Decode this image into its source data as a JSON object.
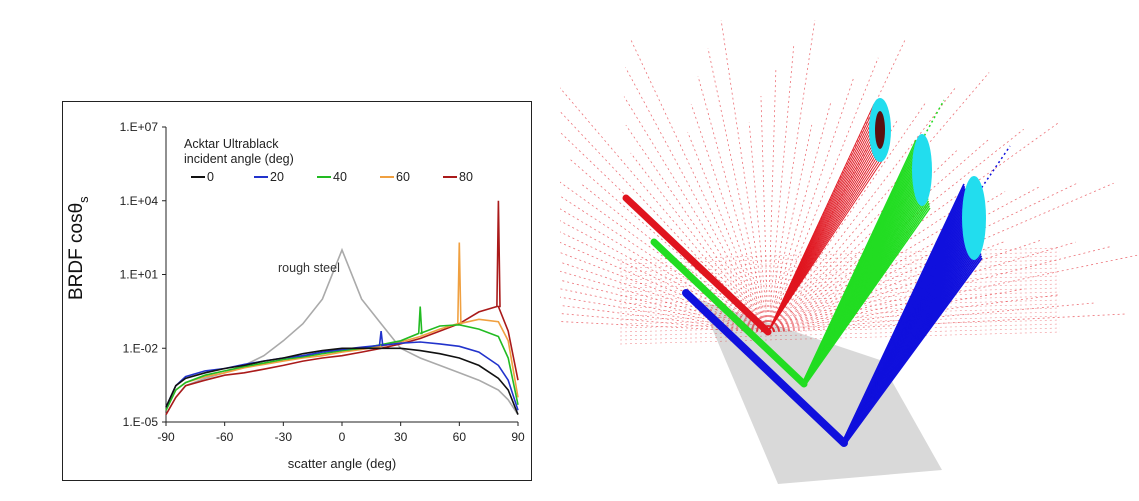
{
  "chart_data": {
    "type": "line",
    "title": "Acktar Ultrablack",
    "subtitle": "incident angle (deg)",
    "xlabel": "scatter angle (deg)",
    "ylabel_main": "BRDF cosθ",
    "ylabel_sub": "s",
    "yscale": "log",
    "xlim": [
      -90,
      90
    ],
    "ylim": [
      1e-05,
      10000000
    ],
    "x_ticks": [
      -90,
      -60,
      -30,
      0,
      30,
      60,
      90
    ],
    "y_ticks": [
      {
        "value": 1e-05,
        "label": "1.E-05"
      },
      {
        "value": 0.01,
        "label": "1.E-02"
      },
      {
        "value": 10,
        "label": "1.E+01"
      },
      {
        "value": 10000,
        "label": "1.E+04"
      },
      {
        "value": 10000000,
        "label": "1.E+07"
      }
    ],
    "x": [
      -90,
      -85,
      -80,
      -70,
      -60,
      -50,
      -40,
      -30,
      -20,
      -10,
      0,
      10,
      20,
      30,
      40,
      50,
      60,
      70,
      80,
      85,
      90
    ],
    "series": [
      {
        "name": "0",
        "color": "#111111",
        "values": [
          4e-05,
          0.0003,
          0.0006,
          0.001,
          0.0015,
          0.002,
          0.003,
          0.004,
          0.006,
          0.008,
          0.01,
          0.01,
          0.01,
          0.01,
          0.008,
          0.006,
          0.004,
          0.002,
          0.0006,
          0.0002,
          2e-05
        ]
      },
      {
        "name": "20",
        "color": "#2233cc",
        "values": [
          4e-05,
          0.0003,
          0.0007,
          0.0012,
          0.0015,
          0.0022,
          0.003,
          0.004,
          0.005,
          0.007,
          0.009,
          0.011,
          0.013,
          0.016,
          0.018,
          0.015,
          0.012,
          0.007,
          0.002,
          0.0005,
          3e-05
        ]
      },
      {
        "name": "40",
        "color": "#22bb22",
        "values": [
          3e-05,
          0.0002,
          0.0004,
          0.0008,
          0.0012,
          0.0018,
          0.0025,
          0.0035,
          0.0045,
          0.006,
          0.008,
          0.01,
          0.014,
          0.02,
          0.04,
          0.08,
          0.09,
          0.06,
          0.03,
          0.004,
          5e-05
        ]
      },
      {
        "name": "60",
        "color": "#f0a040",
        "values": [
          3e-05,
          0.0002,
          0.0004,
          0.0007,
          0.001,
          0.0016,
          0.0022,
          0.003,
          0.004,
          0.005,
          0.007,
          0.009,
          0.012,
          0.018,
          0.03,
          0.06,
          0.1,
          0.15,
          0.12,
          0.02,
          0.0001
        ]
      },
      {
        "name": "80",
        "color": "#aa1a1a",
        "values": [
          2e-05,
          0.0001,
          0.0003,
          0.0005,
          0.0008,
          0.001,
          0.0014,
          0.002,
          0.003,
          0.004,
          0.005,
          0.007,
          0.01,
          0.015,
          0.025,
          0.05,
          0.1,
          0.3,
          0.5,
          0.05,
          0.0005
        ]
      },
      {
        "name": "rough steel",
        "color": "#aaaaaa",
        "values": [
          2e-05,
          0.0001,
          0.0003,
          0.0006,
          0.001,
          0.002,
          0.005,
          0.02,
          0.1,
          1,
          100,
          1,
          0.1,
          0.01,
          0.004,
          0.002,
          0.001,
          0.0005,
          0.0002,
          8e-05,
          2e-05
        ]
      }
    ],
    "spikes": [
      {
        "series": "20",
        "x": 20,
        "peak": 0.05
      },
      {
        "series": "40",
        "x": 40,
        "peak": 0.5
      },
      {
        "series": "60",
        "x": 60,
        "peak": 200
      },
      {
        "series": "80",
        "x": 80,
        "peak": 10000
      }
    ],
    "legend_title": "Acktar Ultrablack",
    "legend_subtitle": "incident angle (deg)",
    "legend_entries": [
      "0",
      "20",
      "40",
      "60",
      "80"
    ],
    "annotation": "rough steel",
    "legend_position": "top-left"
  },
  "scene": {
    "description_colors": {
      "red": "#e0141e",
      "green": "#22dd22",
      "blue": "#1010dd",
      "cyan": "#22ddee",
      "plate": "#d9d9d9"
    }
  }
}
